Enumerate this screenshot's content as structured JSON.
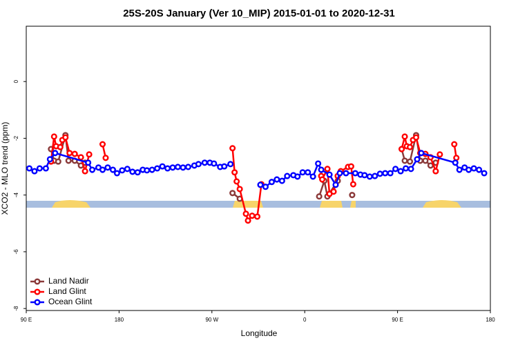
{
  "chart_data": {
    "type": "line",
    "title": "25S-20S January (Ver 10_MIP)   2015-01-01 to 2020-12-31",
    "x_label": "Longitude",
    "y_label": "XCO2 - MLO trend (ppm)",
    "xlim": [
      90,
      540
    ],
    "ylim": [
      -8.07,
      1.95
    ],
    "xticks": [
      {
        "value": 90,
        "label": "90 E"
      },
      180,
      {
        "value": 270,
        "label": "90 W"
      },
      {
        "value": 360,
        "label": "0"
      },
      {
        "value": 450,
        "label": "90 E"
      },
      180.0001
    ],
    "yticks": [
      0,
      -2,
      -4,
      -6,
      -8
    ],
    "legend": "bottom-left",
    "series": [
      {
        "name": "Land Nadir",
        "color": "#8b3a3a",
        "x": [
          114,
          117,
          121,
          128,
          131,
          137,
          143,
          147,
          null,
          290,
          297,
          null,
          374,
          379,
          382,
          392,
          null,
          406,
          null,
          454,
          457,
          462,
          468,
          472,
          477,
          482,
          487
        ],
        "values": [
          -2.38,
          -2.79,
          -2.82,
          -1.89,
          -2.79,
          -2.79,
          -2.96,
          -2.86,
          null,
          -3.93,
          -4.13,
          null,
          -4.05,
          -3.5,
          -4.05,
          -3.5,
          null,
          -4.0,
          null,
          -2.38,
          -2.79,
          -2.82,
          -1.89,
          -2.79,
          -2.79,
          -2.96,
          -2.86
        ]
      },
      {
        "name": "Land Glint",
        "color": "#ff0000",
        "x": [
          114,
          117,
          119,
          123,
          125,
          128,
          132,
          137,
          143,
          147,
          151,
          null,
          164,
          167,
          null,
          290,
          292,
          294,
          297,
          303,
          305,
          309,
          314,
          318,
          null,
          376,
          377,
          382,
          384,
          388,
          392,
          395,
          402,
          405,
          407,
          null,
          454,
          457,
          459,
          462,
          465,
          468,
          472,
          477,
          482,
          487,
          491,
          null,
          505,
          507
        ],
        "values": [
          -2.82,
          -1.94,
          -2.28,
          -2.31,
          -2.06,
          -1.97,
          -2.52,
          -2.55,
          -2.67,
          -3.16,
          -2.57,
          null,
          -2.21,
          -2.69,
          null,
          -2.35,
          -3.2,
          -3.52,
          -3.79,
          -4.66,
          -4.9,
          -4.73,
          -4.76,
          -3.62,
          null,
          -3.33,
          -3.45,
          -3.08,
          -3.96,
          -3.88,
          -3.33,
          -3.16,
          -3.01,
          -2.99,
          -3.62,
          null,
          -2.38,
          -1.94,
          -2.28,
          -2.31,
          -2.06,
          -1.97,
          -2.52,
          -2.55,
          -2.67,
          -3.16,
          -2.57,
          null,
          -2.21,
          -2.69
        ]
      },
      {
        "name": "Ocean Glint",
        "color": "#0000ff",
        "x": [
          93,
          98,
          103,
          109,
          113,
          118,
          150,
          154,
          160,
          164,
          169,
          174,
          178,
          183,
          188,
          193,
          198,
          203,
          207,
          212,
          217,
          222,
          227,
          232,
          237,
          242,
          247,
          253,
          257,
          263,
          268,
          272,
          278,
          282,
          288,
          null,
          317,
          322,
          328,
          333,
          338,
          343,
          349,
          353,
          358,
          363,
          368,
          373,
          376,
          384,
          390,
          394,
          400,
          409,
          414,
          418,
          423,
          428,
          433,
          438,
          443,
          448,
          453,
          458,
          463,
          469,
          473,
          506,
          510,
          515,
          519,
          524,
          529,
          534
        ],
        "values": [
          -3.06,
          -3.16,
          -3.06,
          -3.06,
          -2.74,
          -2.52,
          -2.86,
          -3.11,
          -3.03,
          -3.11,
          -3.03,
          -3.11,
          -3.23,
          -3.13,
          -3.08,
          -3.18,
          -3.2,
          -3.11,
          -3.13,
          -3.11,
          -3.06,
          -2.99,
          -3.06,
          -3.03,
          -3.01,
          -3.03,
          -3.01,
          -2.96,
          -2.91,
          -2.86,
          -2.86,
          -2.89,
          -3.01,
          -2.99,
          -2.91,
          null,
          -3.64,
          -3.71,
          -3.54,
          -3.45,
          -3.5,
          -3.33,
          -3.3,
          -3.35,
          -3.2,
          -3.2,
          -3.35,
          -2.89,
          -3.11,
          -3.28,
          -3.64,
          -3.23,
          -3.23,
          -3.23,
          -3.28,
          -3.3,
          -3.35,
          -3.33,
          -3.25,
          -3.23,
          -3.23,
          -3.08,
          -3.16,
          -3.06,
          -3.08,
          -2.74,
          -2.52,
          -2.86,
          -3.11,
          -3.03,
          -3.11,
          -3.06,
          -3.11,
          -3.23
        ]
      }
    ]
  }
}
